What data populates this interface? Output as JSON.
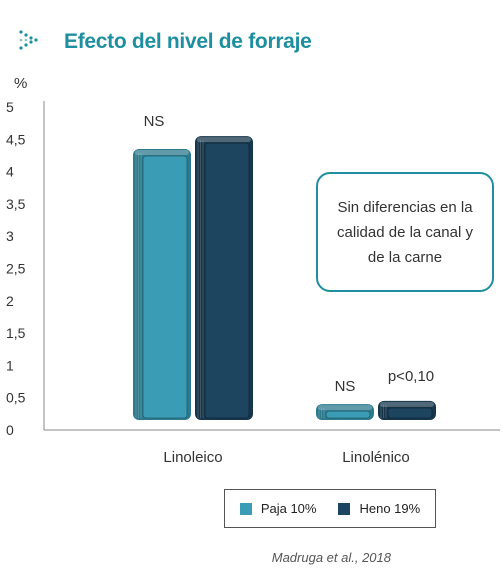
{
  "header": {
    "title": "Efecto del nivel de forraje"
  },
  "chart_data": {
    "type": "bar",
    "title": "Efecto del nivel de forraje",
    "ylabel": "%",
    "xlabel": "",
    "ylim": [
      0,
      5
    ],
    "y_ticks": [
      "0",
      "0,5",
      "1",
      "1,5",
      "2",
      "2,5",
      "3",
      "3,5",
      "4",
      "4,5",
      "5"
    ],
    "categories": [
      "Linoleico",
      "Linolénico"
    ],
    "series": [
      {
        "name": "Paja 10%",
        "values": [
          4.35,
          0.4
        ],
        "color": "#3a9cb5"
      },
      {
        "name": "Heno 19%",
        "values": [
          4.55,
          0.45
        ],
        "color": "#1d4560"
      }
    ],
    "annotations": [
      {
        "category": "Linoleico",
        "text": "NS"
      },
      {
        "category": "Linolénico",
        "text": "NS"
      },
      {
        "category": "Linolénico",
        "series": "Heno 19%",
        "text": "p<0,10"
      }
    ],
    "grid": false,
    "legend_position": "bottom-right"
  },
  "callout": {
    "text": "Sin diferencias en la calidad de la canal y de la carne"
  },
  "source": "Madruga et al., 2018"
}
